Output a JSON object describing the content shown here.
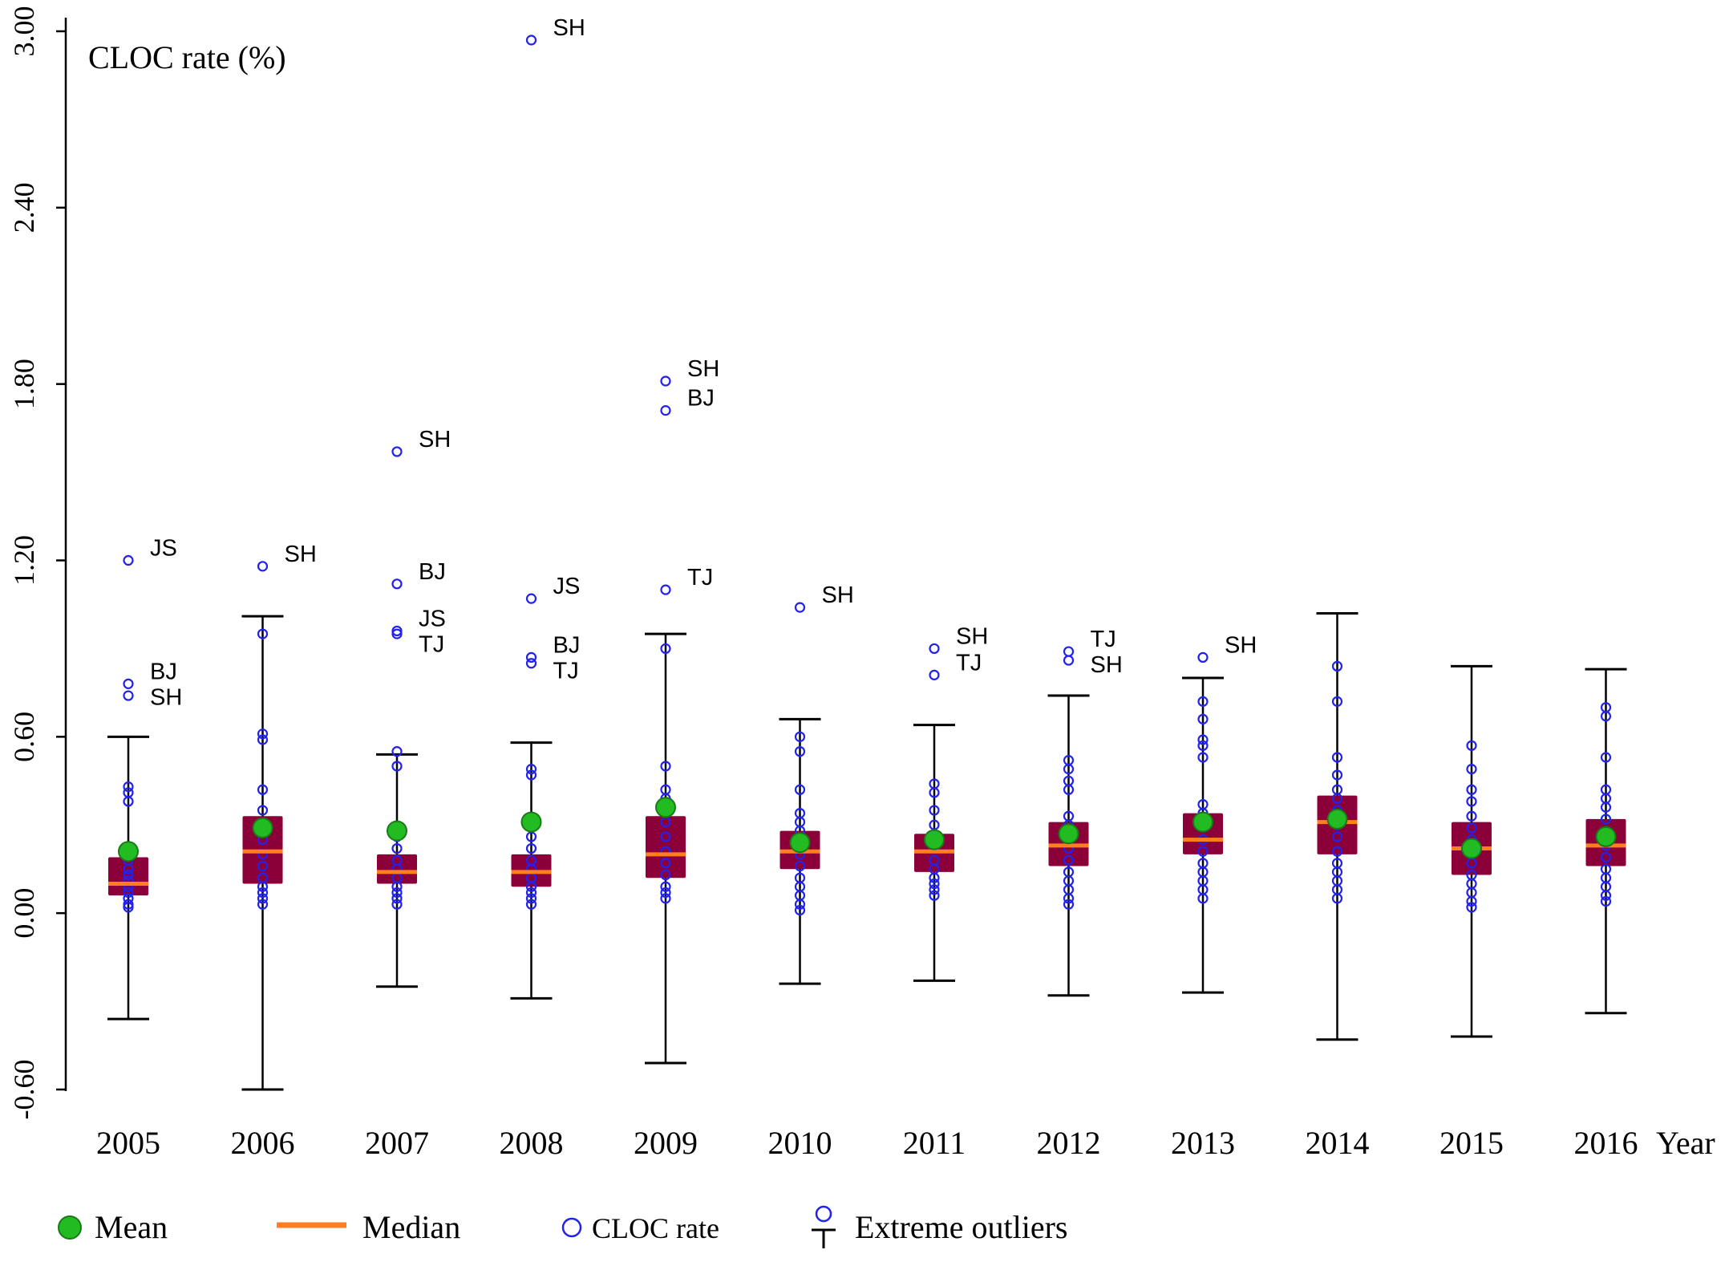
{
  "chart_data": {
    "type": "box",
    "title": "",
    "ylabel": "CLOC rate (%)",
    "xlabel": "Year",
    "ylim": [
      -0.6,
      3.0
    ],
    "yticks": [
      "3.00",
      "2.40",
      "1.80",
      "1.20",
      "0.60",
      "0.00",
      "-0.60"
    ],
    "ytick_values": [
      3.0,
      2.4,
      1.8,
      1.2,
      0.6,
      0.0,
      -0.6
    ],
    "colors": {
      "box": "#8b0039",
      "mean": "#22bb22",
      "median": "#ff7f1e",
      "point": "#2222ee",
      "whisker": "#000000"
    },
    "groups": [
      {
        "year": "2005",
        "q1": 0.06,
        "q3": 0.19,
        "median": 0.1,
        "mean": 0.21,
        "whisker_low": -0.36,
        "whisker_high": 0.6,
        "points": [
          0.02,
          0.03,
          0.05,
          0.07,
          0.09,
          0.11,
          0.13,
          0.15,
          0.18,
          0.38,
          0.41,
          0.43
        ],
        "outliers": [
          {
            "value": 1.2,
            "label": "JS"
          },
          {
            "value": 0.78,
            "label": "BJ"
          },
          {
            "value": 0.74,
            "label": "SH"
          }
        ]
      },
      {
        "year": "2006",
        "q1": 0.1,
        "q3": 0.33,
        "median": 0.21,
        "mean": 0.29,
        "whisker_low": -0.6,
        "whisker_high": 1.01,
        "points": [
          0.03,
          0.05,
          0.07,
          0.09,
          0.12,
          0.16,
          0.2,
          0.25,
          0.3,
          0.35,
          0.42,
          0.59,
          0.61,
          0.95
        ],
        "outliers": [
          {
            "value": 1.18,
            "label": "SH"
          }
        ]
      },
      {
        "year": "2007",
        "q1": 0.1,
        "q3": 0.2,
        "median": 0.14,
        "mean": 0.28,
        "whisker_low": -0.25,
        "whisker_high": 0.54,
        "points": [
          0.03,
          0.05,
          0.07,
          0.09,
          0.12,
          0.15,
          0.18,
          0.22,
          0.26,
          0.5,
          0.55
        ],
        "outliers": [
          {
            "value": 1.57,
            "label": "SH"
          },
          {
            "value": 1.12,
            "label": "BJ"
          },
          {
            "value": 0.96,
            "label": "JS"
          },
          {
            "value": 0.95,
            "label": "TJ"
          }
        ]
      },
      {
        "year": "2008",
        "q1": 0.09,
        "q3": 0.2,
        "median": 0.14,
        "mean": 0.31,
        "whisker_low": -0.29,
        "whisker_high": 0.58,
        "points": [
          0.03,
          0.05,
          0.07,
          0.09,
          0.12,
          0.15,
          0.18,
          0.22,
          0.26,
          0.3,
          0.47,
          0.49
        ],
        "outliers": [
          {
            "value": 2.97,
            "label": "SH"
          },
          {
            "value": 1.07,
            "label": "JS"
          },
          {
            "value": 0.87,
            "label": "BJ"
          },
          {
            "value": 0.85,
            "label": "TJ"
          }
        ]
      },
      {
        "year": "2009",
        "q1": 0.12,
        "q3": 0.33,
        "median": 0.2,
        "mean": 0.36,
        "whisker_low": -0.51,
        "whisker_high": 0.95,
        "points": [
          0.05,
          0.07,
          0.09,
          0.13,
          0.17,
          0.21,
          0.26,
          0.31,
          0.36,
          0.39,
          0.42,
          0.5,
          0.9
        ],
        "outliers": [
          {
            "value": 1.81,
            "label": "SH"
          },
          {
            "value": 1.71,
            "label": "BJ"
          },
          {
            "value": 1.1,
            "label": "TJ"
          }
        ]
      },
      {
        "year": "2010",
        "q1": 0.15,
        "q3": 0.28,
        "median": 0.21,
        "mean": 0.24,
        "whisker_low": -0.24,
        "whisker_high": 0.66,
        "points": [
          0.01,
          0.03,
          0.06,
          0.09,
          0.12,
          0.16,
          0.2,
          0.24,
          0.28,
          0.31,
          0.34,
          0.42,
          0.55,
          0.6
        ],
        "outliers": [
          {
            "value": 1.04,
            "label": "SH"
          }
        ]
      },
      {
        "year": "2011",
        "q1": 0.14,
        "q3": 0.27,
        "median": 0.21,
        "mean": 0.25,
        "whisker_low": -0.23,
        "whisker_high": 0.64,
        "points": [
          0.06,
          0.08,
          0.1,
          0.12,
          0.15,
          0.18,
          0.22,
          0.26,
          0.3,
          0.35,
          0.41,
          0.44
        ],
        "outliers": [
          {
            "value": 0.9,
            "label": "SH"
          },
          {
            "value": 0.81,
            "label": "TJ"
          }
        ]
      },
      {
        "year": "2012",
        "q1": 0.16,
        "q3": 0.31,
        "median": 0.23,
        "mean": 0.27,
        "whisker_low": -0.28,
        "whisker_high": 0.74,
        "points": [
          0.03,
          0.05,
          0.08,
          0.11,
          0.14,
          0.18,
          0.22,
          0.26,
          0.3,
          0.33,
          0.42,
          0.45,
          0.49,
          0.52
        ],
        "outliers": [
          {
            "value": 0.89,
            "label": "TJ"
          },
          {
            "value": 0.86,
            "label": "SH"
          }
        ]
      },
      {
        "year": "2013",
        "q1": 0.2,
        "q3": 0.34,
        "median": 0.25,
        "mean": 0.31,
        "whisker_low": -0.27,
        "whisker_high": 0.8,
        "points": [
          0.05,
          0.08,
          0.11,
          0.14,
          0.17,
          0.21,
          0.25,
          0.3,
          0.34,
          0.37,
          0.53,
          0.57,
          0.59,
          0.66,
          0.72
        ],
        "outliers": [
          {
            "value": 0.87,
            "label": "SH"
          }
        ]
      },
      {
        "year": "2014",
        "q1": 0.2,
        "q3": 0.4,
        "median": 0.31,
        "mean": 0.32,
        "whisker_low": -0.43,
        "whisker_high": 1.02,
        "points": [
          0.05,
          0.08,
          0.11,
          0.14,
          0.17,
          0.21,
          0.26,
          0.3,
          0.35,
          0.39,
          0.42,
          0.47,
          0.53,
          0.72,
          0.84
        ],
        "outliers": []
      },
      {
        "year": "2015",
        "q1": 0.13,
        "q3": 0.31,
        "median": 0.22,
        "mean": 0.22,
        "whisker_low": -0.42,
        "whisker_high": 0.84,
        "points": [
          0.02,
          0.04,
          0.07,
          0.1,
          0.13,
          0.17,
          0.21,
          0.25,
          0.29,
          0.33,
          0.38,
          0.42,
          0.49,
          0.57
        ],
        "outliers": []
      },
      {
        "year": "2016",
        "q1": 0.16,
        "q3": 0.32,
        "median": 0.23,
        "mean": 0.26,
        "whisker_low": -0.34,
        "whisker_high": 0.83,
        "points": [
          0.04,
          0.06,
          0.09,
          0.12,
          0.15,
          0.19,
          0.23,
          0.28,
          0.32,
          0.36,
          0.39,
          0.42,
          0.53,
          0.67,
          0.7
        ],
        "outliers": []
      }
    ],
    "legend": {
      "mean": "Mean",
      "median": "Median",
      "cloc": "CLOC rate",
      "outliers": "Extreme outliers"
    }
  }
}
